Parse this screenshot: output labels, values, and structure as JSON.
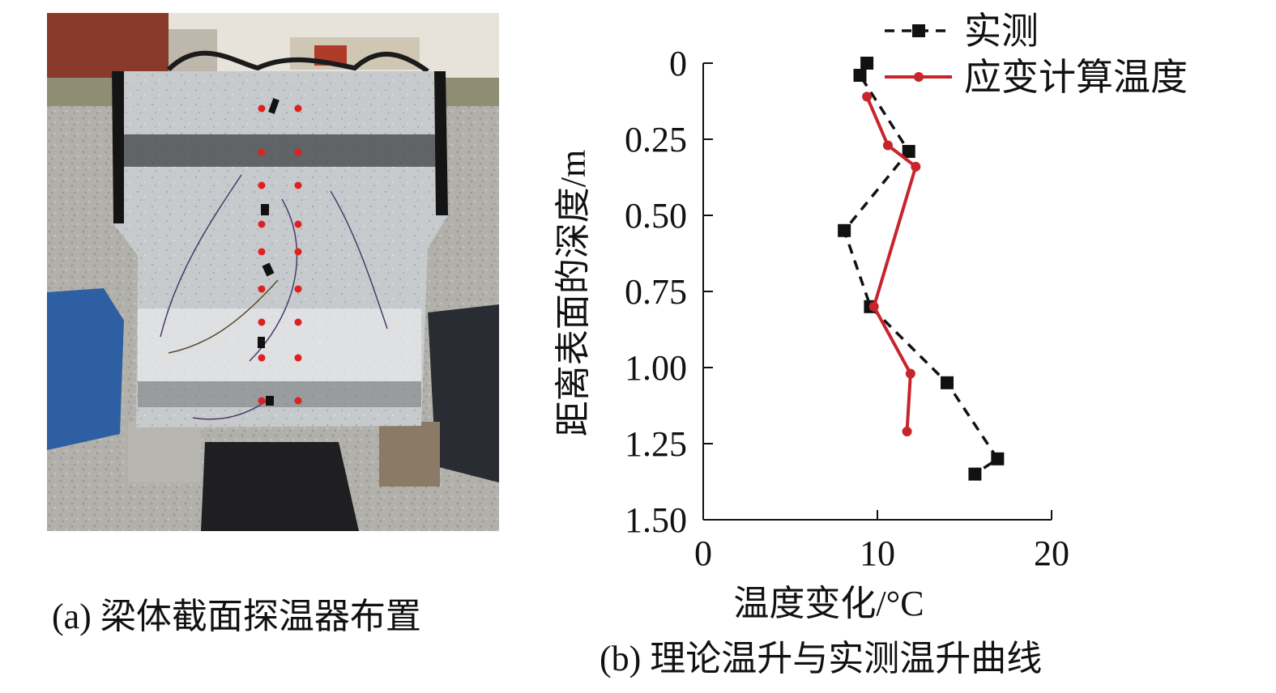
{
  "panel_a": {
    "caption": "(a) 梁体截面探温器布置",
    "colors": {
      "probe_dot": "#e02020",
      "sensor_marker": "#111111",
      "concrete": "#c9ccce",
      "sky": "#e9e4dc",
      "gravel": "#b3b1ab"
    }
  },
  "panel_b": {
    "caption": "(b) 理论温升与实测温升曲线"
  },
  "chart_data": {
    "type": "line",
    "orientation": "depth-down",
    "xlabel": "温度变化/°C",
    "ylabel": "距离表面的深度/m",
    "xlim": [
      0,
      20
    ],
    "ylim": [
      0,
      1.5
    ],
    "y_inverted": true,
    "x_ticks": [
      "0",
      "10",
      "20"
    ],
    "y_ticks": [
      "0",
      "0.25",
      "0.50",
      "0.75",
      "1.00",
      "1.25",
      "1.50"
    ],
    "grid": false,
    "legend_position": "top-right",
    "series": [
      {
        "name": "实测",
        "color": "#111111",
        "line_style": "dashed",
        "marker": "square",
        "points": [
          {
            "x": 9.4,
            "y": 0.0
          },
          {
            "x": 9.0,
            "y": 0.04
          },
          {
            "x": 11.8,
            "y": 0.29
          },
          {
            "x": 8.1,
            "y": 0.55
          },
          {
            "x": 9.6,
            "y": 0.8
          },
          {
            "x": 14.0,
            "y": 1.05
          },
          {
            "x": 16.9,
            "y": 1.3
          },
          {
            "x": 15.6,
            "y": 1.35
          }
        ]
      },
      {
        "name": "应变计算温度",
        "color": "#c8242c",
        "line_style": "solid",
        "marker": "circle",
        "points": [
          {
            "x": 9.4,
            "y": 0.11
          },
          {
            "x": 10.6,
            "y": 0.27
          },
          {
            "x": 12.2,
            "y": 0.34
          },
          {
            "x": 9.8,
            "y": 0.8
          },
          {
            "x": 11.9,
            "y": 1.02
          },
          {
            "x": 11.7,
            "y": 1.21
          }
        ]
      }
    ]
  }
}
